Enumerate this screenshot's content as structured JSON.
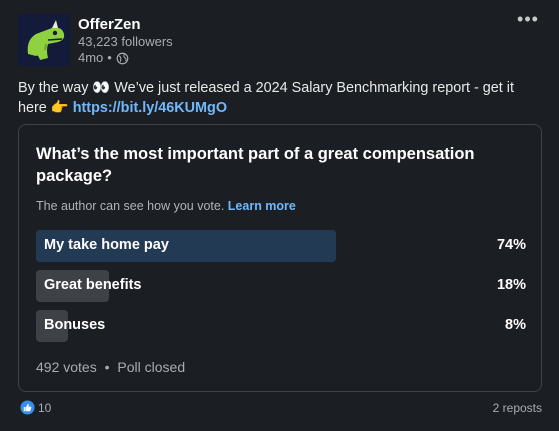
{
  "author": {
    "name": "OfferZen",
    "followers": "43,223 followers",
    "time": "4mo",
    "separator": "•"
  },
  "menu": {
    "more_label": "•••"
  },
  "post": {
    "text": "By the way 👀 We’ve just released a 2024 Salary Benchmarking report - get it here 👉 ",
    "link": "https://bit.ly/46KUMgO"
  },
  "poll": {
    "question": "What’s the most important part of a great compensation package?",
    "visibility_text": "The author can see how you vote. ",
    "learn_more": "Learn more",
    "options": [
      {
        "label": "My take home pay",
        "percent": "74%",
        "share": 0.74,
        "top": true
      },
      {
        "label": "Great benefits",
        "percent": "18%",
        "share": 0.18,
        "top": false
      },
      {
        "label": "Bonuses",
        "percent": "8%",
        "share": 0.08,
        "top": false
      }
    ],
    "votes": "492 votes",
    "separator": "•",
    "status": "Poll closed"
  },
  "social": {
    "reactions": "10",
    "reposts": "2 reposts"
  },
  "colors": {
    "background": "#1b1f23",
    "link": "#71b7fb",
    "top_bar": "#233a55",
    "bar": "#3e4246"
  }
}
